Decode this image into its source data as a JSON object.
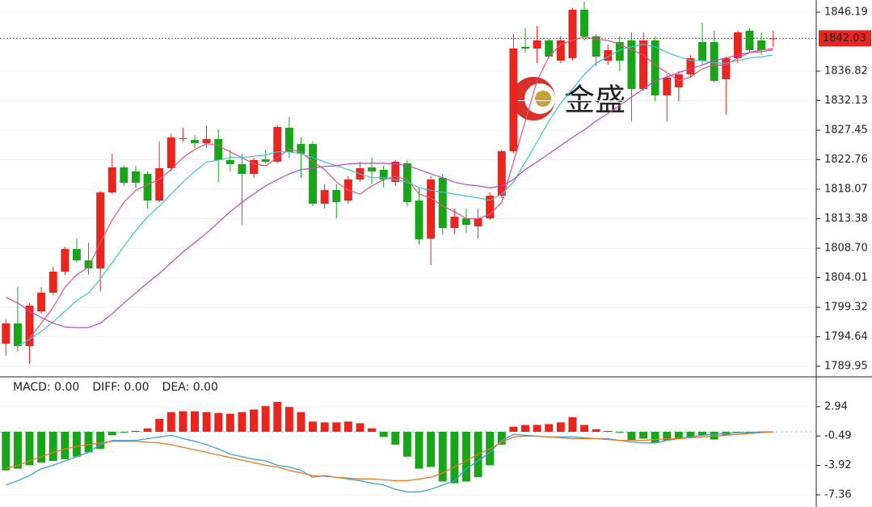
{
  "chart_data": [
    {
      "type": "candlestick",
      "categories": [
        null,
        null,
        null,
        null,
        null,
        null,
        null,
        null,
        null,
        null,
        null,
        null,
        null,
        null,
        null,
        null,
        null,
        null,
        null,
        null,
        null,
        null,
        null,
        null,
        null,
        null,
        null,
        null,
        null,
        null,
        null,
        null,
        null,
        null,
        null,
        null,
        null,
        null,
        null,
        null,
        null,
        null,
        null,
        null,
        null,
        null,
        null,
        null,
        null,
        null,
        null,
        null,
        null,
        null,
        null,
        null,
        null,
        null,
        null,
        null,
        null,
        null,
        null,
        null,
        null,
        null
      ],
      "open": [
        1793.55,
        1796.76,
        1793.16,
        1798.68,
        1801.64,
        1804.98,
        1808.57,
        1806.77,
        1805.49,
        1817.56,
        1821.54,
        1820.9,
        1820.51,
        1816.27,
        1821.41,
        1826.03,
        1825.91,
        1825.39,
        1826.03,
        1822.7,
        1822.05,
        1820.51,
        1822.82,
        1822.44,
        1827.83,
        1825.26,
        1825.26,
        1815.76,
        1817.94,
        1816.27,
        1819.61,
        1821.54,
        1821.16,
        1819.23,
        1822.18,
        1816.27,
        1810.24,
        1819.87,
        1811.91,
        1813.45,
        1812.17,
        1813.45,
        1817.04,
        1824.11,
        1840.67,
        1840.42,
        1841.7,
        1838.49,
        1838.87,
        1846.58,
        1842.34,
        1838.49,
        1841.44,
        1841.7,
        1833.99,
        1841.7,
        1832.97,
        1834.25,
        1836.31,
        1841.44,
        1841.44,
        1835.54,
        1838.87,
        1843.24,
        1841.7,
        1841.96
      ],
      "high": [
        1797.4,
        1802.53,
        1799.97,
        1802.53,
        1805.75,
        1808.96,
        1810.24,
        1809.6,
        1817.81,
        1823.72,
        1821.8,
        1821.8,
        1820.9,
        1825.65,
        1826.93,
        1827.83,
        1826.68,
        1828.22,
        1827.57,
        1824.36,
        1823.72,
        1823.08,
        1824.36,
        1828.22,
        1829.5,
        1826.29,
        1825.65,
        1818.84,
        1818.84,
        1820.13,
        1822.44,
        1823.08,
        1821.8,
        1822.7,
        1822.7,
        1818.33,
        1820.13,
        1820.51,
        1814.99,
        1814.99,
        1814.99,
        1817.56,
        1824.36,
        1842.73,
        1843.63,
        1844.01,
        1841.96,
        1842.34,
        1846.84,
        1847.86,
        1842.73,
        1841.06,
        1842.34,
        1842.98,
        1842.98,
        1842.34,
        1836.31,
        1836.82,
        1839.39,
        1844.52,
        1843.24,
        1839.13,
        1843.24,
        1843.63,
        1842.98,
        1843.24
      ],
      "low": [
        1791.62,
        1792.26,
        1790.34,
        1798.3,
        1801.25,
        1804.46,
        1806.39,
        1804.46,
        1801.89,
        1817.3,
        1818.59,
        1818.33,
        1814.99,
        1816.02,
        1820.9,
        1825.65,
        1824.62,
        1824.62,
        1819.23,
        1820.9,
        1812.42,
        1819.87,
        1822.18,
        1822.18,
        1823.08,
        1819.87,
        1815.38,
        1814.99,
        1813.45,
        1815.76,
        1819.23,
        1818.84,
        1818.33,
        1818.59,
        1815.38,
        1809.34,
        1806.01,
        1810.88,
        1810.88,
        1811.14,
        1810.24,
        1813.19,
        1816.66,
        1823.72,
        1839.77,
        1838.1,
        1838.87,
        1838.1,
        1838.49,
        1841.7,
        1837.59,
        1837.85,
        1836.82,
        1828.86,
        1833.74,
        1832.07,
        1828.86,
        1832.07,
        1835.79,
        1837.85,
        1835.02,
        1829.89,
        1838.1,
        1839.77,
        1839.39,
        1840.67
      ],
      "close": [
        1796.76,
        1793.16,
        1799.58,
        1801.64,
        1804.98,
        1808.57,
        1806.77,
        1805.49,
        1817.56,
        1821.54,
        1819.1,
        1819.1,
        1816.27,
        1821.41,
        1826.29,
        1826.16,
        1825.39,
        1826.03,
        1822.7,
        1822.05,
        1820.51,
        1822.7,
        1822.44,
        1827.96,
        1823.98,
        1823.72,
        1815.76,
        1817.94,
        1816.02,
        1819.61,
        1821.41,
        1820.9,
        1819.61,
        1822.44,
        1816.02,
        1810.11,
        1819.61,
        1811.91,
        1813.71,
        1812.42,
        1813.45,
        1817.04,
        1824.11,
        1840.42,
        1840.42,
        1841.7,
        1839.13,
        1841.7,
        1846.58,
        1842.34,
        1839.13,
        1840.16,
        1838.49,
        1833.99,
        1841.7,
        1832.97,
        1835.79,
        1836.31,
        1838.87,
        1838.49,
        1835.28,
        1838.87,
        1842.98,
        1840.16,
        1840.16,
        1842.03
      ],
      "up_color": "#e8251e",
      "down_color": "#19a519",
      "lines": [
        {
          "color": "#e8507a",
          "values": [
            null,
            null,
            1794.4,
            1796.8,
            1799.3,
            1802.5,
            1804.5,
            1805.7,
            1809.6,
            1813.2,
            1816.0,
            1817.9,
            1818.8,
            1819.6,
            1821.2,
            1823.1,
            1824.4,
            1825.3,
            1825.0,
            1824.0,
            1823.1,
            1822.1,
            1821.8,
            1823.1,
            1824.4,
            1824.0,
            1822.4,
            1821.2,
            1819.2,
            1817.9,
            1817.3,
            1818.6,
            1819.6,
            1820.1,
            1819.6,
            1817.3,
            1816.7,
            1815.4,
            1814.5,
            1813.4,
            1813.4,
            1814.1,
            1816.0,
            1822.4,
            1828.9,
            1835.3,
            1839.1,
            1841.1,
            1841.7,
            1842.3,
            1841.9,
            1841.7,
            1841.1,
            1840.2,
            1839.4,
            1837.8,
            1836.6,
            1835.3,
            1835.9,
            1837.2,
            1837.8,
            1837.8,
            1838.9,
            1839.8,
            1840.2,
            1840.4
          ]
        },
        {
          "color": "#3cc0e0",
          "values": [
            null,
            1793.2,
            1794.2,
            1795.5,
            1797.0,
            1798.7,
            1800.4,
            1801.6,
            1803.8,
            1806.4,
            1809.0,
            1811.5,
            1813.7,
            1815.4,
            1817.3,
            1819.2,
            1820.9,
            1822.4,
            1822.7,
            1823.1,
            1823.1,
            1823.3,
            1823.5,
            1824.0,
            1824.0,
            1823.7,
            1823.1,
            1822.4,
            1821.8,
            1821.2,
            1820.5,
            1819.9,
            1819.9,
            1819.6,
            1819.2,
            1818.3,
            1817.9,
            1817.6,
            1817.3,
            1817.0,
            1816.7,
            1816.3,
            1817.3,
            1819.2,
            1822.4,
            1825.6,
            1828.9,
            1831.7,
            1834.0,
            1836.3,
            1838.1,
            1839.1,
            1840.2,
            1840.7,
            1841.1,
            1840.7,
            1839.8,
            1839.1,
            1838.5,
            1838.5,
            1838.1,
            1838.1,
            1838.5,
            1838.9,
            1839.1,
            1839.4
          ]
        },
        {
          "color": "#b548c6",
          "values": [
            1800.9,
            1800.0,
            1798.7,
            1797.7,
            1796.8,
            1796.2,
            1796.1,
            1796.1,
            1796.8,
            1798.3,
            1800.0,
            1801.6,
            1803.2,
            1804.7,
            1806.4,
            1808.1,
            1809.6,
            1811.1,
            1812.8,
            1814.5,
            1816.0,
            1817.3,
            1818.6,
            1819.6,
            1820.5,
            1821.2,
            1821.4,
            1821.7,
            1821.8,
            1822.1,
            1822.2,
            1822.2,
            1822.2,
            1822.1,
            1821.8,
            1821.2,
            1820.5,
            1819.9,
            1819.2,
            1818.8,
            1818.6,
            1818.3,
            1818.6,
            1819.6,
            1821.2,
            1822.4,
            1823.7,
            1825.0,
            1826.3,
            1827.5,
            1828.9,
            1830.1,
            1831.4,
            1832.7,
            1834.0,
            1835.3,
            1835.9,
            1836.6,
            1837.2,
            1837.8,
            1838.5,
            1838.9,
            1839.4,
            1839.8,
            1839.9,
            1840.2
          ]
        }
      ],
      "ylim": [
        1788.41,
        1848.12
      ],
      "yticks": [
        1846.19,
        1836.82,
        1832.13,
        1827.45,
        1822.76,
        1818.07,
        1813.38,
        {
          "value": 1808.7,
          "label": "1808.70"
        },
        1804.01,
        1799.32,
        1794.64,
        1789.95
      ],
      "grid": true,
      "last_price": 1842.03,
      "last_price_color": "#e8251e",
      "watermark": "金盛"
    },
    {
      "type": "macd",
      "categories": [
        null,
        null,
        null,
        null,
        null,
        null,
        null,
        null,
        null,
        null,
        null,
        null,
        null,
        null,
        null,
        null,
        null,
        null,
        null,
        null,
        null,
        null,
        null,
        null,
        null,
        null,
        null,
        null,
        null,
        null,
        null,
        null,
        null,
        null,
        null,
        null,
        null,
        null,
        null,
        null,
        null,
        null,
        null,
        null,
        null,
        null,
        null,
        null,
        null,
        null,
        null,
        null,
        null,
        null,
        null,
        null,
        null,
        null,
        null,
        null,
        null,
        null,
        null,
        null,
        null,
        null
      ],
      "labels": [
        {
          "text": "MACD: 0.00",
          "color": "#e8251e"
        },
        {
          "text": "DIFF: 0.00",
          "color": "#3ca0e0"
        },
        {
          "text": "DEA: 0.00",
          "color": "#f07820"
        }
      ],
      "histogram": {
        "up_color": "#e8251e",
        "down_color": "#19a519",
        "values": [
          -4.5,
          -4.3,
          -3.9,
          -3.6,
          -3.4,
          -3.2,
          -2.9,
          -2.4,
          -2.0,
          -0.4,
          -0.1,
          0.1,
          0.4,
          1.5,
          2.3,
          2.4,
          2.4,
          2.3,
          2.2,
          2.1,
          2.3,
          2.6,
          3.0,
          3.5,
          2.9,
          2.3,
          1.2,
          1.1,
          1.1,
          1.2,
          1.0,
          0.4,
          -0.6,
          -1.5,
          -2.9,
          -4.3,
          -4.1,
          -5.8,
          -6.0,
          -5.8,
          -5.3,
          -3.9,
          -1.5,
          0.6,
          0.8,
          0.8,
          0.9,
          1.1,
          1.7,
          0.8,
          0.3,
          0.1,
          -0.1,
          -1.0,
          -0.8,
          -1.3,
          -1.0,
          -0.8,
          -0.6,
          -0.4,
          -0.9,
          -0.4,
          -0.1,
          -0.2,
          -0.1,
          0.0
        ]
      },
      "series": [
        {
          "color": "#3ca0e0",
          "values": [
            -6.2,
            -5.7,
            -5.1,
            -4.3,
            -3.9,
            -3.4,
            -2.9,
            -2.4,
            -1.5,
            -1.0,
            -1.0,
            -1.0,
            -0.8,
            -0.6,
            -0.4,
            -0.8,
            -1.1,
            -1.5,
            -2.0,
            -2.6,
            -2.9,
            -3.2,
            -3.4,
            -3.9,
            -4.1,
            -4.5,
            -5.3,
            -5.1,
            -5.3,
            -5.5,
            -5.7,
            -6.0,
            -6.2,
            -6.7,
            -7.0,
            -7.0,
            -6.7,
            -6.2,
            -5.7,
            -4.3,
            -3.4,
            -2.4,
            -1.0,
            -0.3,
            -0.4,
            -0.5,
            -0.6,
            -0.6,
            -0.6,
            -0.7,
            -0.8,
            -0.8,
            -1.0,
            -1.2,
            -1.3,
            -1.3,
            -1.0,
            -0.8,
            -0.6,
            -0.4,
            -0.3,
            -0.2,
            -0.1,
            -0.1,
            0.0,
            0.0
          ]
        },
        {
          "color": "#f07820",
          "values": [
            -4.3,
            -3.9,
            -3.4,
            -2.9,
            -2.4,
            -2.0,
            -1.7,
            -1.5,
            -1.3,
            -1.1,
            -1.1,
            -1.1,
            -1.2,
            -1.3,
            -1.5,
            -1.8,
            -2.1,
            -2.4,
            -2.7,
            -3.0,
            -3.3,
            -3.6,
            -3.9,
            -4.1,
            -4.5,
            -4.8,
            -5.1,
            -5.2,
            -5.3,
            -5.4,
            -5.5,
            -5.5,
            -5.6,
            -5.7,
            -5.7,
            -5.5,
            -5.3,
            -4.8,
            -4.1,
            -3.4,
            -2.6,
            -2.0,
            -1.2,
            -0.6,
            -0.5,
            -0.5,
            -0.6,
            -0.7,
            -0.8,
            -0.8,
            -0.8,
            -0.9,
            -1.0,
            -1.0,
            -1.0,
            -0.9,
            -0.8,
            -0.8,
            -0.7,
            -0.6,
            -0.5,
            -0.4,
            -0.3,
            -0.2,
            -0.1,
            0.0
          ]
        }
      ],
      "ylim": [
        -8.77,
        6.32
      ],
      "yticks": [
        2.94,
        -0.49,
        -3.92,
        -7.36
      ],
      "grid": true
    }
  ]
}
